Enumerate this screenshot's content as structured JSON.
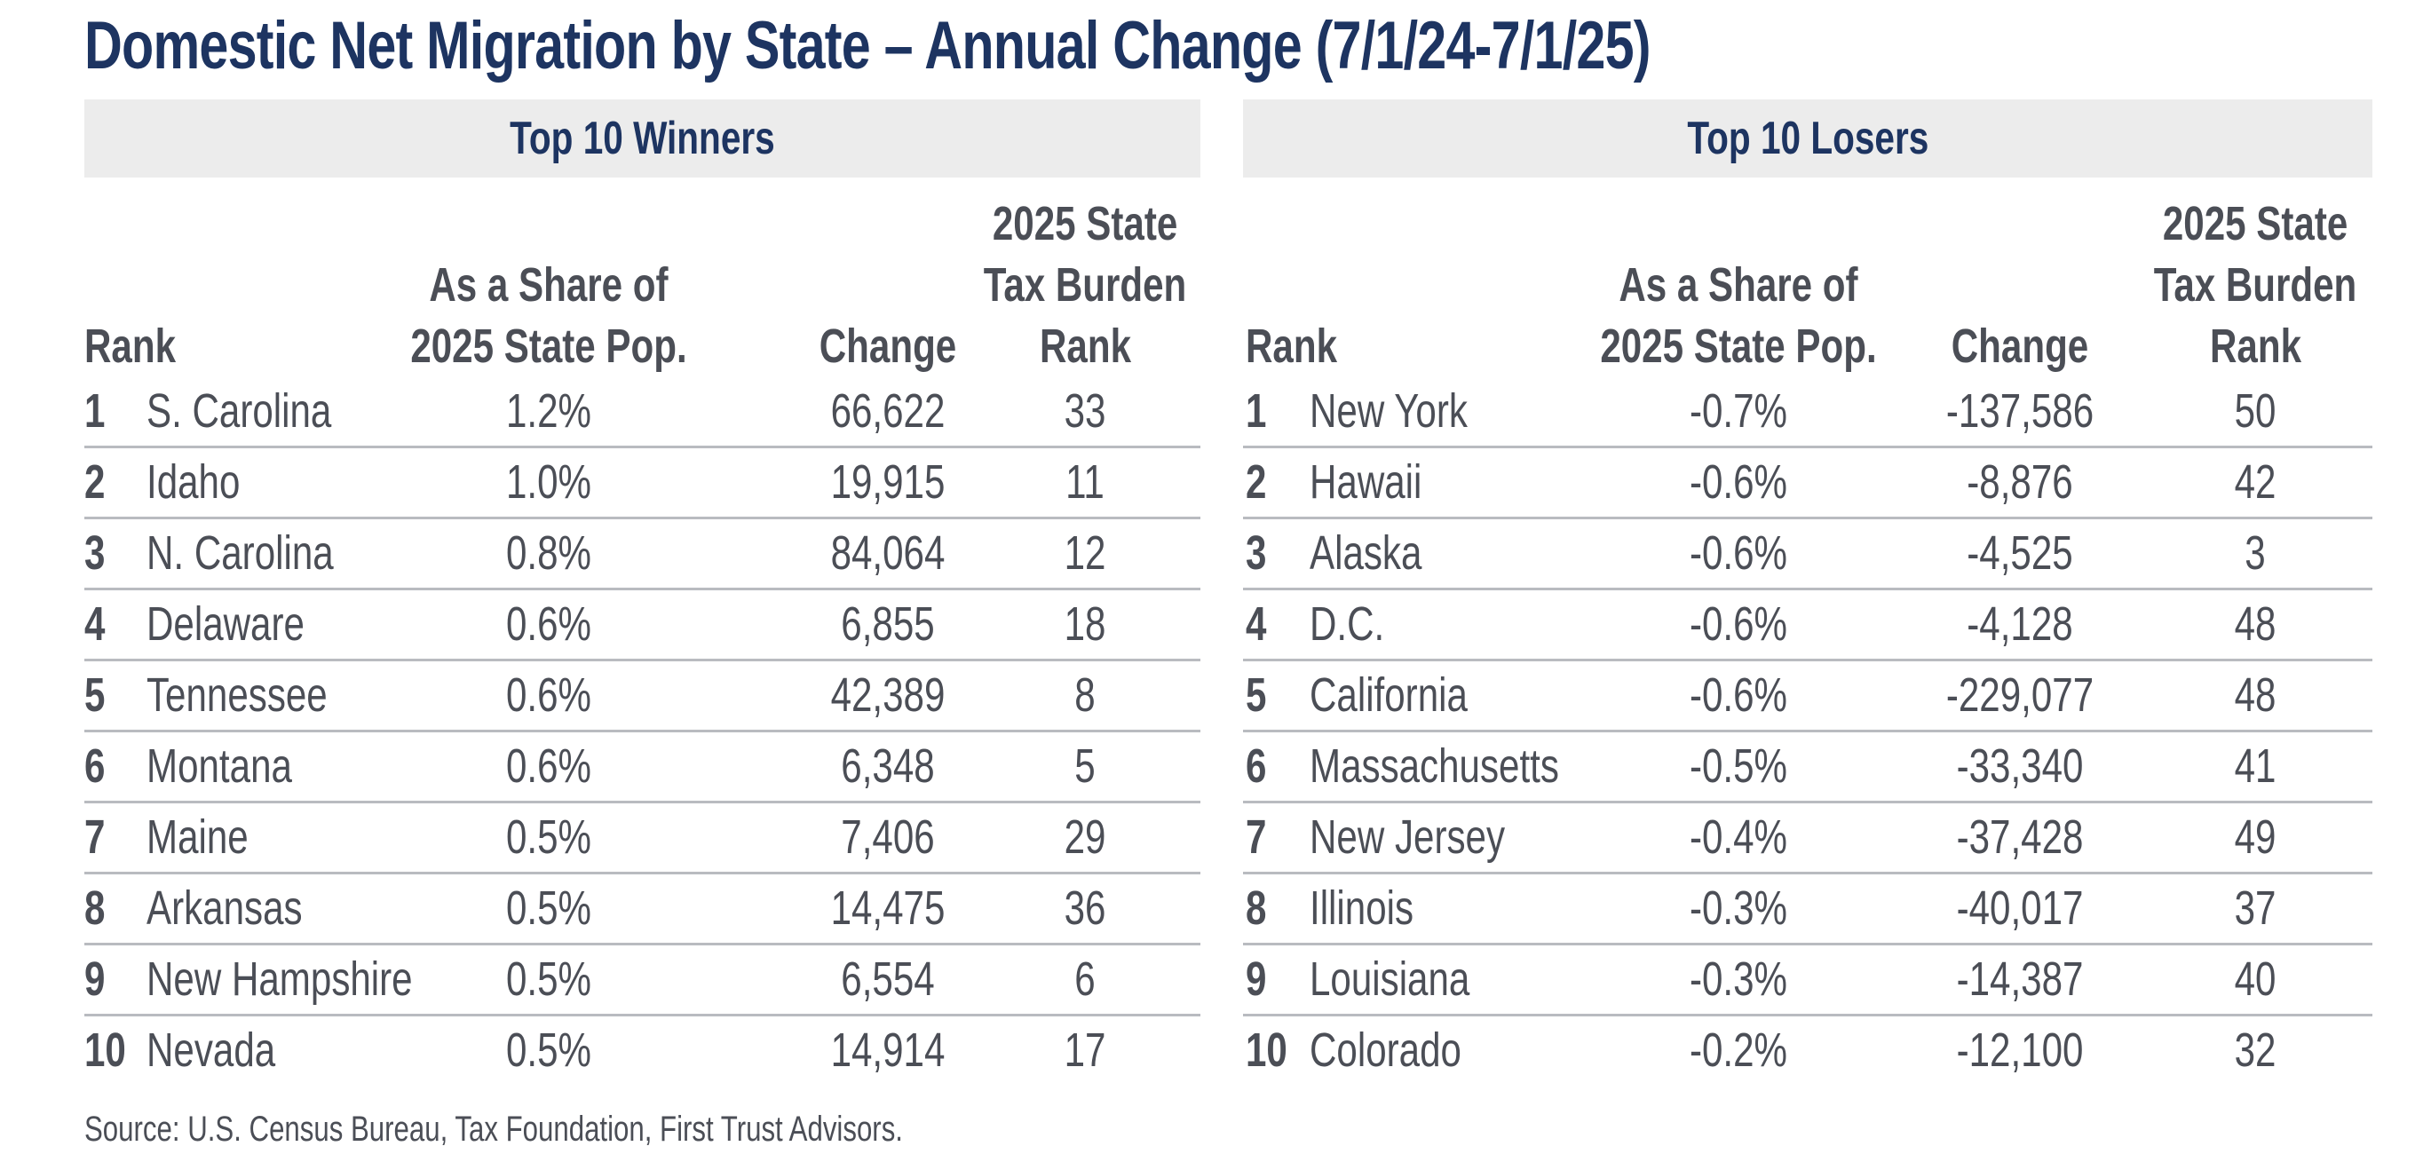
{
  "title": "Domestic Net Migration by State – Annual Change (7/1/24-7/1/25)",
  "columns": {
    "rank": "Rank",
    "share": [
      "As a Share of",
      "2025 State Pop."
    ],
    "change": "Change",
    "tax": [
      "2025 State",
      "Tax Burden",
      "Rank"
    ]
  },
  "winners": {
    "heading": "Top 10 Winners",
    "rows": [
      {
        "rank": "1",
        "state": "S. Carolina",
        "share": "1.2%",
        "change": "66,622",
        "tax": "33"
      },
      {
        "rank": "2",
        "state": "Idaho",
        "share": "1.0%",
        "change": "19,915",
        "tax": "11"
      },
      {
        "rank": "3",
        "state": "N. Carolina",
        "share": "0.8%",
        "change": "84,064",
        "tax": "12"
      },
      {
        "rank": "4",
        "state": "Delaware",
        "share": "0.6%",
        "change": "6,855",
        "tax": "18"
      },
      {
        "rank": "5",
        "state": "Tennessee",
        "share": "0.6%",
        "change": "42,389",
        "tax": "8"
      },
      {
        "rank": "6",
        "state": "Montana",
        "share": "0.6%",
        "change": "6,348",
        "tax": "5"
      },
      {
        "rank": "7",
        "state": "Maine",
        "share": "0.5%",
        "change": "7,406",
        "tax": "29"
      },
      {
        "rank": "8",
        "state": "Arkansas",
        "share": "0.5%",
        "change": "14,475",
        "tax": "36"
      },
      {
        "rank": "9",
        "state": "New Hampshire",
        "share": "0.5%",
        "change": "6,554",
        "tax": "6"
      },
      {
        "rank": "10",
        "state": "Nevada",
        "share": "0.5%",
        "change": "14,914",
        "tax": "17"
      }
    ]
  },
  "losers": {
    "heading": "Top 10 Losers",
    "rows": [
      {
        "rank": "1",
        "state": "New York",
        "share": "-0.7%",
        "change": "-137,586",
        "tax": "50"
      },
      {
        "rank": "2",
        "state": "Hawaii",
        "share": "-0.6%",
        "change": "-8,876",
        "tax": "42"
      },
      {
        "rank": "3",
        "state": "Alaska",
        "share": "-0.6%",
        "change": "-4,525",
        "tax": "3"
      },
      {
        "rank": "4",
        "state": "D.C.",
        "share": "-0.6%",
        "change": "-4,128",
        "tax": "48"
      },
      {
        "rank": "5",
        "state": "California",
        "share": "-0.6%",
        "change": "-229,077",
        "tax": "48"
      },
      {
        "rank": "6",
        "state": "Massachusetts",
        "share": "-0.5%",
        "change": "-33,340",
        "tax": "41"
      },
      {
        "rank": "7",
        "state": "New Jersey",
        "share": "-0.4%",
        "change": "-37,428",
        "tax": "49"
      },
      {
        "rank": "8",
        "state": "Illinois",
        "share": "-0.3%",
        "change": "-40,017",
        "tax": "37"
      },
      {
        "rank": "9",
        "state": "Louisiana",
        "share": "-0.3%",
        "change": "-14,387",
        "tax": "40"
      },
      {
        "rank": "10",
        "state": "Colorado",
        "share": "-0.2%",
        "change": "-12,100",
        "tax": "32"
      }
    ]
  },
  "source": "Source: U.S. Census Bureau, Tax Foundation, First Trust Advisors.",
  "colors": {
    "title": "#1d3461",
    "text": "#4b4e56",
    "header_bg": "#ececec",
    "rule": "#b9bbc0"
  }
}
